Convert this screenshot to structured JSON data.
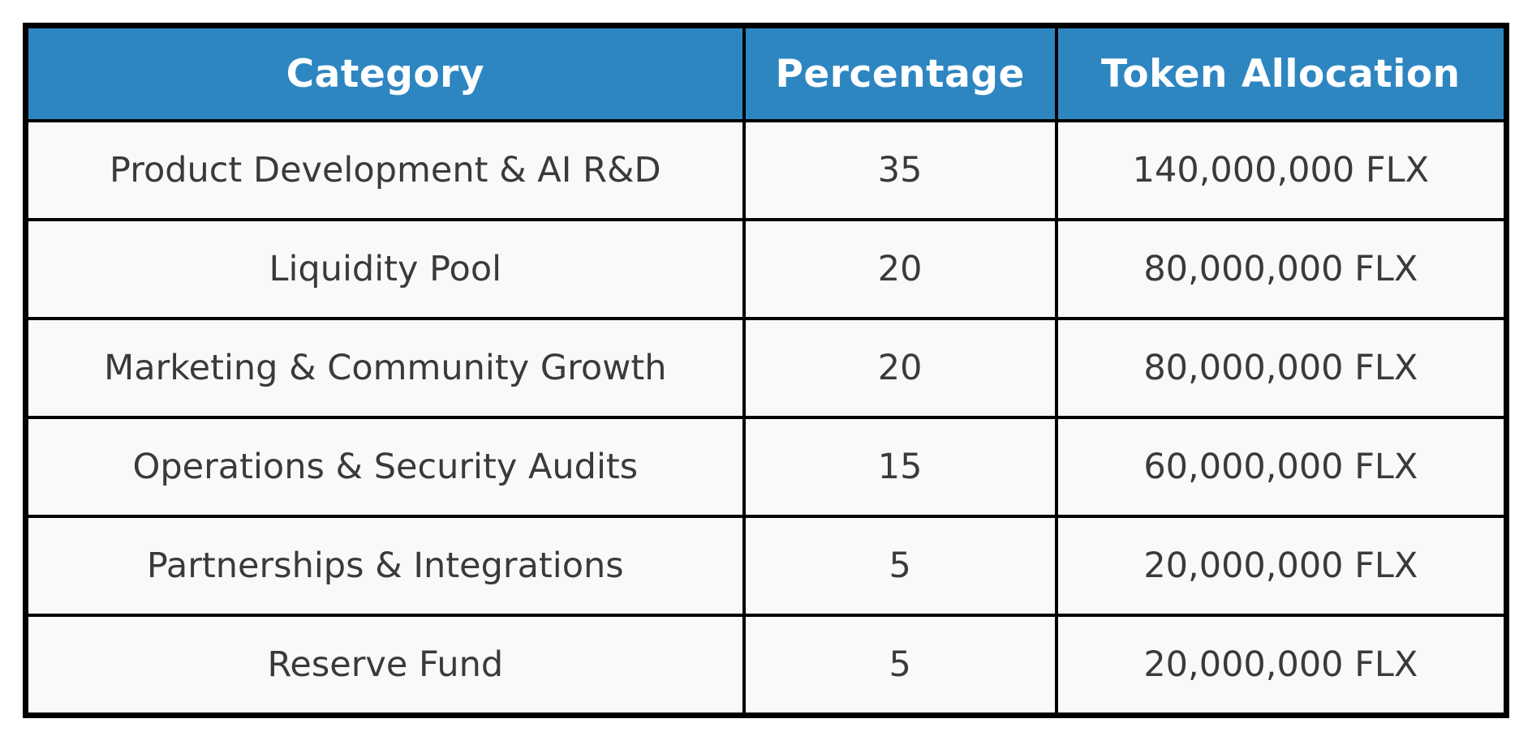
{
  "chart_data": {
    "type": "table",
    "title": "",
    "columns": [
      "Category",
      "Percentage",
      "Token Allocation"
    ],
    "rows": [
      {
        "category": "Product Development & AI R&D",
        "percentage": "35",
        "token_allocation": "140,000,000 FLX"
      },
      {
        "category": "Liquidity Pool",
        "percentage": "20",
        "token_allocation": "80,000,000 FLX"
      },
      {
        "category": "Marketing & Community Growth",
        "percentage": "20",
        "token_allocation": "80,000,000 FLX"
      },
      {
        "category": "Operations & Security Audits",
        "percentage": "15",
        "token_allocation": "60,000,000 FLX"
      },
      {
        "category": "Partnerships & Integrations",
        "percentage": "5",
        "token_allocation": "20,000,000 FLX"
      },
      {
        "category": "Reserve Fund",
        "percentage": "5",
        "token_allocation": "20,000,000 FLX"
      }
    ]
  },
  "colors": {
    "page_bg": "#ffffff",
    "header_bg": "#2e86c1",
    "header_text": "#ffffff",
    "cell_bg": "#f8f9f9",
    "cell_text": "#3a3a3a",
    "border": "#000000"
  }
}
